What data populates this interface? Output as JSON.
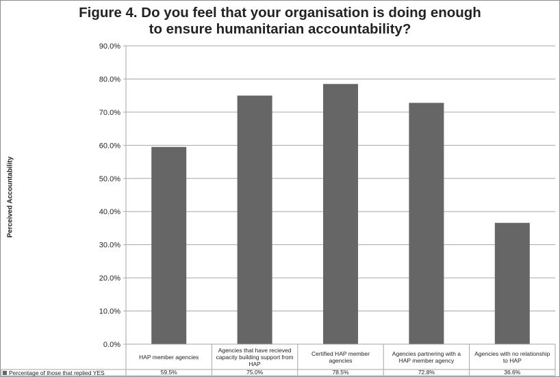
{
  "colors": {
    "bar": "#666666",
    "grid": "#a6a6a6",
    "text": "#222222"
  },
  "chart_data": {
    "type": "bar",
    "title": [
      "Figure 4. Do you feel that your organisation is doing enough",
      "to ensure humanitarian accountability?"
    ],
    "xlabel": "",
    "ylabel": "Perceived Accountability",
    "ylim": [
      0,
      90
    ],
    "yticks": [
      0,
      10,
      20,
      30,
      40,
      50,
      60,
      70,
      80,
      90
    ],
    "ytick_labels": [
      "0.0%",
      "10.0%",
      "20.0%",
      "30.0%",
      "40.0%",
      "50.0%",
      "60.0%",
      "70.0%",
      "80.0%",
      "90.0%"
    ],
    "grid": true,
    "categories": [
      "HAP member agencies",
      "Agencies that have recieved capacity building support from HAP",
      "Certified HAP member agencies",
      "Agencies partnering with a HAP member agency",
      "Agencies with no relationship to HAP"
    ],
    "series": [
      {
        "name": "Percentage of those that replied YES",
        "values": [
          59.5,
          75.0,
          78.5,
          72.8,
          36.6
        ],
        "value_labels": [
          "59.5%",
          "75.0%",
          "78.5%",
          "72.8%",
          "36.6%"
        ]
      }
    ]
  }
}
